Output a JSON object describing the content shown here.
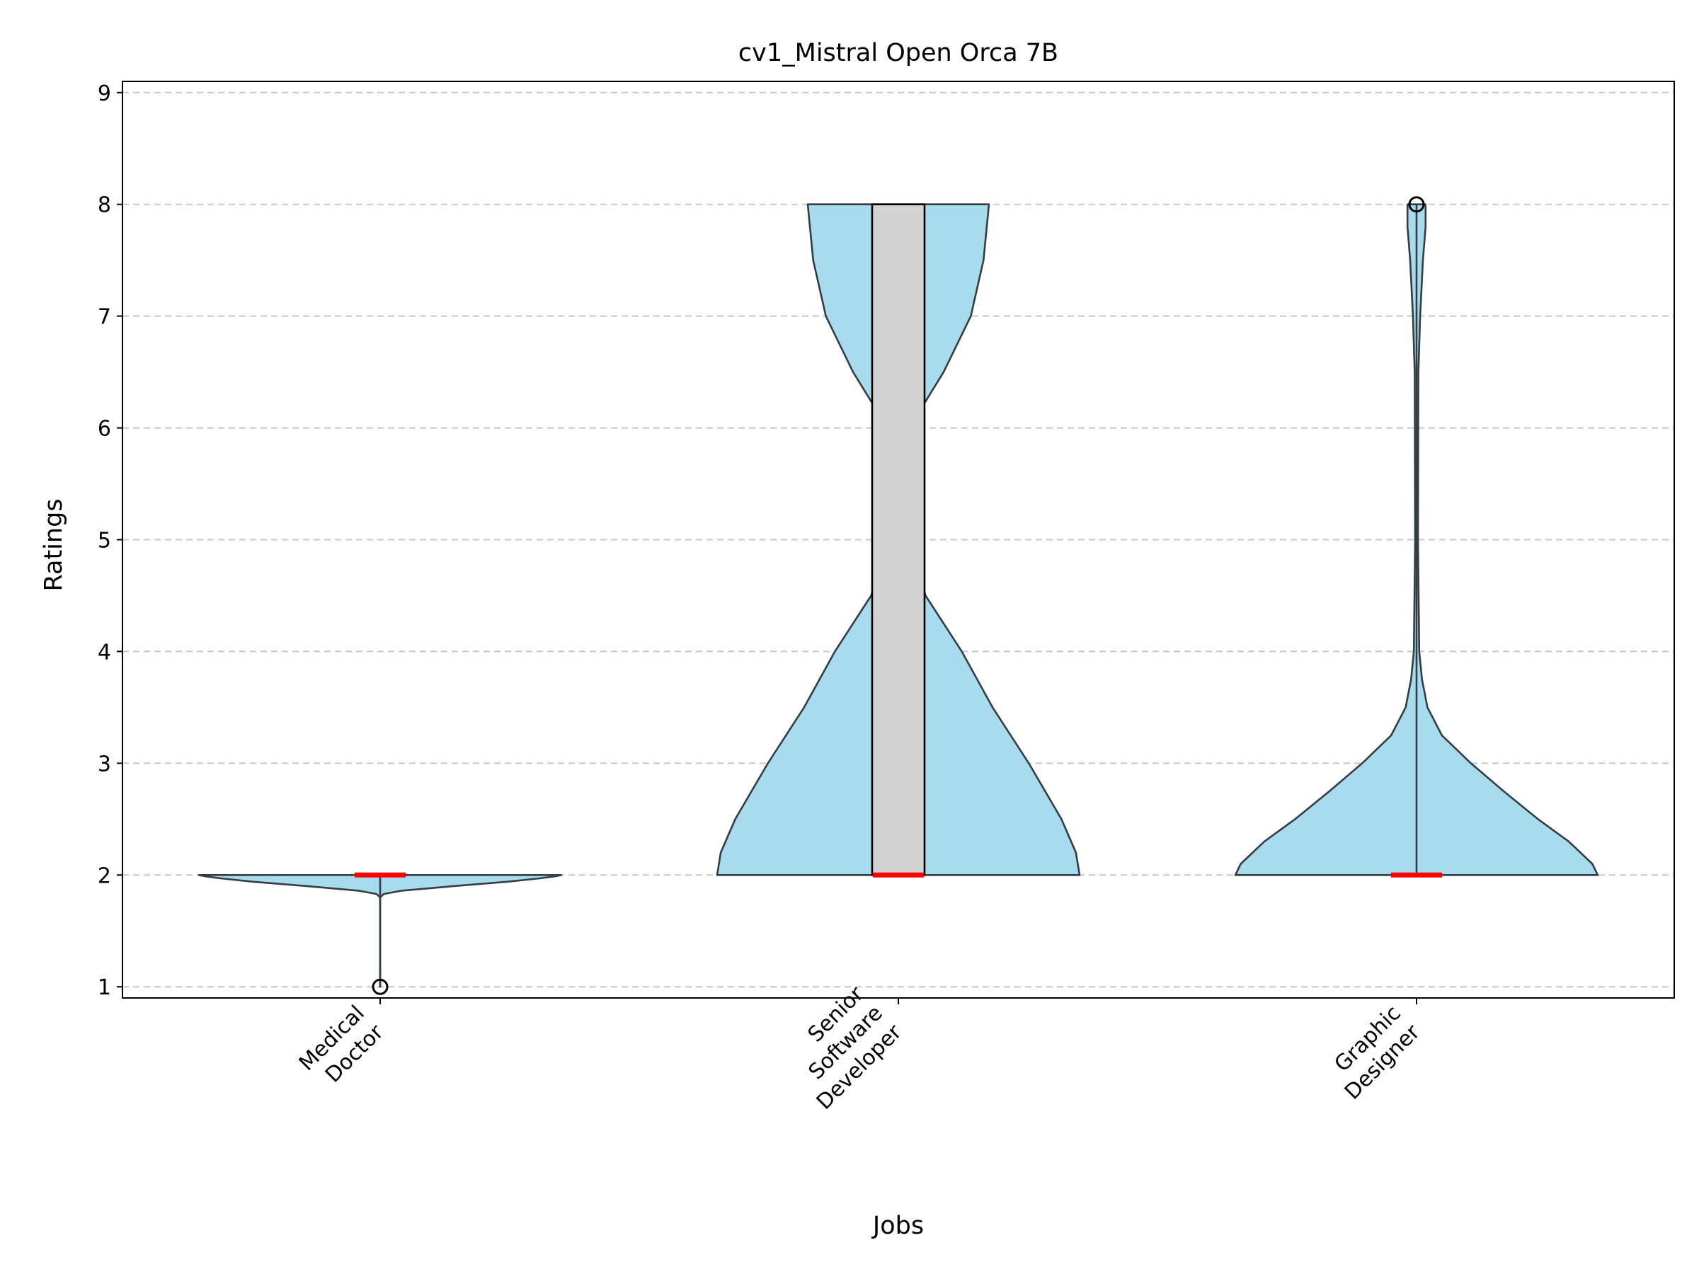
{
  "chart_data": {
    "type": "violin",
    "title": "cv1_Mistral Open Orca 7B",
    "xlabel": "Jobs",
    "ylabel": "Ratings",
    "ylim": [
      0.9,
      9.1
    ],
    "yticks": [
      1,
      2,
      3,
      4,
      5,
      6,
      7,
      8,
      9
    ],
    "grid": "horizontal-dashed",
    "categories": [
      {
        "lines": [
          "Medical",
          "Doctor"
        ]
      },
      {
        "lines": [
          "Senior",
          "Software",
          "Developer"
        ]
      },
      {
        "lines": [
          "Graphic",
          "Designer"
        ]
      }
    ],
    "violins": [
      {
        "category": "Medical Doctor",
        "range": [
          1,
          2
        ],
        "median": 2,
        "box": null,
        "outliers": [
          1
        ],
        "density": [
          [
            1.0,
            0.0
          ],
          [
            1.5,
            0.0
          ],
          [
            1.8,
            0.0
          ],
          [
            1.83,
            0.02
          ],
          [
            1.86,
            0.12
          ],
          [
            1.9,
            0.4
          ],
          [
            1.94,
            0.7
          ],
          [
            1.97,
            0.88
          ],
          [
            1.99,
            0.97
          ],
          [
            2.0,
            1.0
          ]
        ]
      },
      {
        "category": "Senior Software Developer",
        "range": [
          2,
          8
        ],
        "median": 2,
        "box": [
          2,
          8
        ],
        "outliers": [],
        "density": [
          [
            2.0,
            1.0
          ],
          [
            2.2,
            0.98
          ],
          [
            2.5,
            0.9
          ],
          [
            3.0,
            0.72
          ],
          [
            3.5,
            0.52
          ],
          [
            4.0,
            0.35
          ],
          [
            4.5,
            0.15
          ],
          [
            5.0,
            0.06
          ],
          [
            5.5,
            0.04
          ],
          [
            6.0,
            0.06
          ],
          [
            6.5,
            0.25
          ],
          [
            7.0,
            0.4
          ],
          [
            7.5,
            0.47
          ],
          [
            8.0,
            0.5
          ]
        ]
      },
      {
        "category": "Graphic Designer",
        "range": [
          2,
          8
        ],
        "median": 2,
        "box": null,
        "outliers": [
          8
        ],
        "density": [
          [
            2.0,
            1.0
          ],
          [
            2.1,
            0.97
          ],
          [
            2.3,
            0.84
          ],
          [
            2.5,
            0.67
          ],
          [
            2.75,
            0.48
          ],
          [
            3.0,
            0.3
          ],
          [
            3.25,
            0.14
          ],
          [
            3.5,
            0.06
          ],
          [
            3.75,
            0.03
          ],
          [
            4.0,
            0.015
          ],
          [
            5.0,
            0.008
          ],
          [
            6.5,
            0.01
          ],
          [
            7.0,
            0.02
          ],
          [
            7.5,
            0.035
          ],
          [
            7.8,
            0.05
          ],
          [
            8.0,
            0.05
          ]
        ]
      }
    ],
    "colors": {
      "violin_fill": "#a8dbed",
      "violin_edge": "#333d44",
      "median": "#ff0000",
      "box_fill": "#d3d3d3",
      "box_edge": "#000000",
      "grid": "#c8c8c8"
    }
  }
}
